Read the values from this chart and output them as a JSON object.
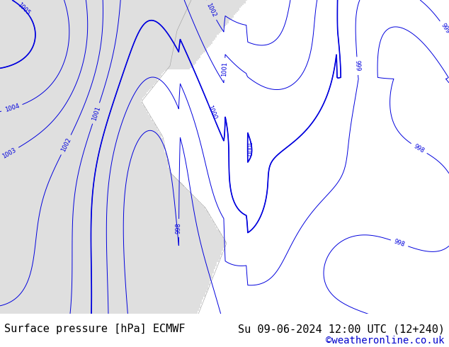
{
  "title_left": "Surface pressure [hPa] ECMWF",
  "title_right": "Su 09-06-2024 12:00 UTC (12+240)",
  "credit": "©weatheronline.co.uk",
  "bg_color": "#b8e890",
  "ocean_color": "#e0e0e0",
  "contour_color": "#0000dd",
  "coast_color": "#888888",
  "bottom_bar_color": "#ffffff",
  "bottom_text_color": "#000000",
  "credit_color": "#0000cc",
  "fig_width": 6.34,
  "fig_height": 4.9,
  "dpi": 100,
  "title_fontsize": 11,
  "credit_fontsize": 10
}
